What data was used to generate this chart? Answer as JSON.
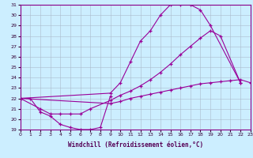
{
  "xlabel": "Windchill (Refroidissement éolien,°C)",
  "bg_color": "#cceeff",
  "line_color": "#990099",
  "xmin": 0,
  "xmax": 23,
  "ymin": 19,
  "ymax": 31,
  "curve1_x": [
    0,
    1,
    2,
    3,
    4,
    5,
    6,
    7,
    8,
    9
  ],
  "curve1_y": [
    22.0,
    22.0,
    20.7,
    20.3,
    19.5,
    19.2,
    19.0,
    19.0,
    19.2,
    22.2
  ],
  "curve2_x": [
    0,
    2,
    3,
    4,
    5,
    6,
    7,
    9,
    10,
    11,
    12,
    13,
    14,
    15,
    16,
    17,
    18,
    19,
    20,
    22
  ],
  "curve2_y": [
    22.0,
    21.0,
    20.5,
    20.5,
    20.5,
    20.5,
    21.0,
    21.8,
    22.3,
    22.7,
    23.2,
    23.8,
    24.5,
    25.3,
    26.2,
    27.0,
    27.8,
    28.5,
    28.0,
    23.5
  ],
  "curve3_x": [
    0,
    9,
    10,
    11,
    12,
    13,
    14,
    15,
    16,
    17,
    18,
    19,
    22
  ],
  "curve3_y": [
    22.0,
    22.5,
    23.5,
    25.5,
    27.5,
    28.5,
    30.0,
    31.0,
    31.0,
    31.0,
    30.5,
    29.0,
    23.5
  ],
  "curve4_x": [
    0,
    9,
    10,
    11,
    12,
    13,
    14,
    15,
    16,
    17,
    18,
    19,
    20,
    21,
    22,
    23
  ],
  "curve4_y": [
    22.0,
    21.5,
    21.7,
    22.0,
    22.2,
    22.4,
    22.6,
    22.8,
    23.0,
    23.2,
    23.4,
    23.5,
    23.6,
    23.7,
    23.8,
    23.5
  ],
  "grid_color": "#aabbcc",
  "tick_color": "#330033",
  "xlabel_color": "#550055"
}
